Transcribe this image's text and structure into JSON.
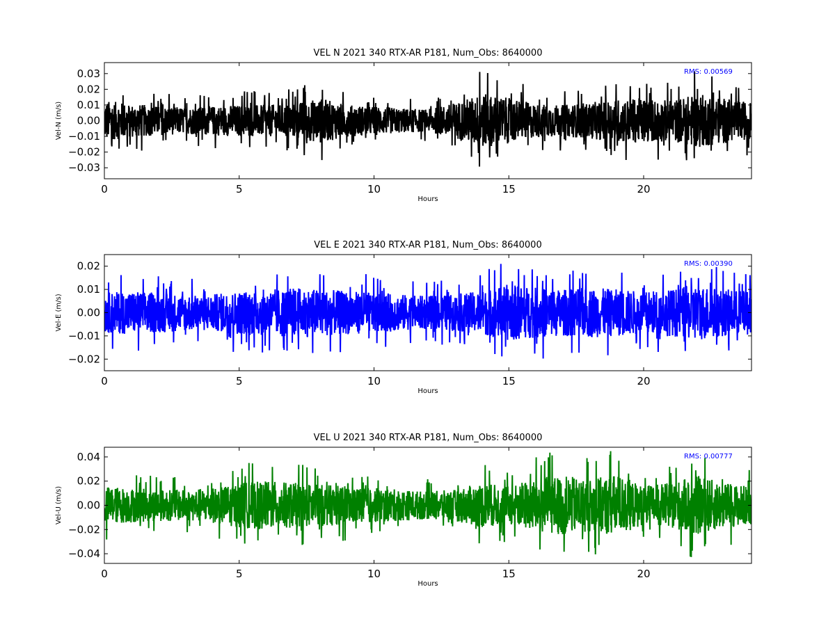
{
  "chart_data": [
    {
      "type": "line",
      "title": "VEL N 2021 340 RTX-AR  P181, Num_Obs: 8640000",
      "xlabel": "Hours",
      "ylabel": "Vel-N (m/s)",
      "xlim": [
        0,
        24
      ],
      "ylim": [
        -0.037,
        0.037
      ],
      "x_ticks": [
        0,
        5,
        10,
        15,
        20
      ],
      "y_ticks": [
        -0.03,
        -0.02,
        -0.01,
        0.0,
        0.01,
        0.02,
        0.03
      ],
      "y_tick_labels": [
        "−0.03",
        "−0.02",
        "−0.01",
        "0.00",
        "0.01",
        "0.02",
        "0.03"
      ],
      "rms_label": "RMS:  0.00569",
      "series": [
        {
          "color": "#000000",
          "envelope": {
            "hours": [
              0,
              1,
              2,
              3,
              4,
              5,
              6,
              7,
              8,
              9,
              10,
              11,
              12,
              13,
              14,
              15,
              16,
              17,
              18,
              19,
              20,
              21,
              22,
              23,
              24
            ],
            "amplitude": [
              0.018,
              0.015,
              0.013,
              0.012,
              0.013,
              0.014,
              0.014,
              0.015,
              0.02,
              0.014,
              0.013,
              0.011,
              0.01,
              0.016,
              0.024,
              0.02,
              0.015,
              0.014,
              0.016,
              0.019,
              0.02,
              0.018,
              0.024,
              0.02,
              0.016
            ]
          }
        }
      ]
    },
    {
      "type": "line",
      "title": "VEL E 2021 340 RTX-AR  P181, Num_Obs: 8640000",
      "xlabel": "Hours",
      "ylabel": "Vel-E (m/s)",
      "xlim": [
        0,
        24
      ],
      "ylim": [
        -0.025,
        0.025
      ],
      "x_ticks": [
        0,
        5,
        10,
        15,
        20
      ],
      "y_ticks": [
        -0.02,
        -0.01,
        0.0,
        0.01,
        0.02
      ],
      "y_tick_labels": [
        "−0.02",
        "−0.01",
        "0.00",
        "0.01",
        "0.02"
      ],
      "rms_label": "RMS:  0.00390",
      "series": [
        {
          "color": "#0000ff",
          "envelope": {
            "hours": [
              0,
              1,
              2,
              3,
              4,
              5,
              6,
              7,
              8,
              9,
              10,
              11,
              12,
              13,
              14,
              15,
              16,
              17,
              18,
              19,
              20,
              21,
              22,
              23,
              24
            ],
            "amplitude": [
              0.012,
              0.013,
              0.012,
              0.011,
              0.011,
              0.013,
              0.014,
              0.015,
              0.014,
              0.013,
              0.012,
              0.011,
              0.01,
              0.011,
              0.013,
              0.017,
              0.015,
              0.014,
              0.015,
              0.014,
              0.013,
              0.014,
              0.017,
              0.014,
              0.013
            ]
          }
        }
      ]
    },
    {
      "type": "line",
      "title": "VEL U 2021 340 RTX-AR  P181, Num_Obs: 8640000",
      "xlabel": "Hours",
      "ylabel": "Vel-U (m/s)",
      "xlim": [
        0,
        24
      ],
      "ylim": [
        -0.048,
        0.048
      ],
      "x_ticks": [
        0,
        5,
        10,
        15,
        20
      ],
      "y_ticks": [
        -0.04,
        -0.02,
        0.0,
        0.02,
        0.04
      ],
      "y_tick_labels": [
        "−0.04",
        "−0.02",
        "0.00",
        "0.02",
        "0.04"
      ],
      "rms_label": "RMS:  0.00777",
      "series": [
        {
          "color": "#008000",
          "envelope": {
            "hours": [
              0,
              1,
              2,
              3,
              4,
              5,
              6,
              7,
              8,
              9,
              10,
              11,
              12,
              13,
              14,
              15,
              16,
              17,
              18,
              19,
              20,
              21,
              22,
              23,
              24
            ],
            "amplitude": [
              0.022,
              0.02,
              0.018,
              0.018,
              0.02,
              0.026,
              0.028,
              0.026,
              0.024,
              0.022,
              0.02,
              0.018,
              0.016,
              0.018,
              0.026,
              0.022,
              0.032,
              0.034,
              0.03,
              0.036,
              0.022,
              0.026,
              0.034,
              0.026,
              0.022
            ]
          }
        }
      ]
    }
  ]
}
